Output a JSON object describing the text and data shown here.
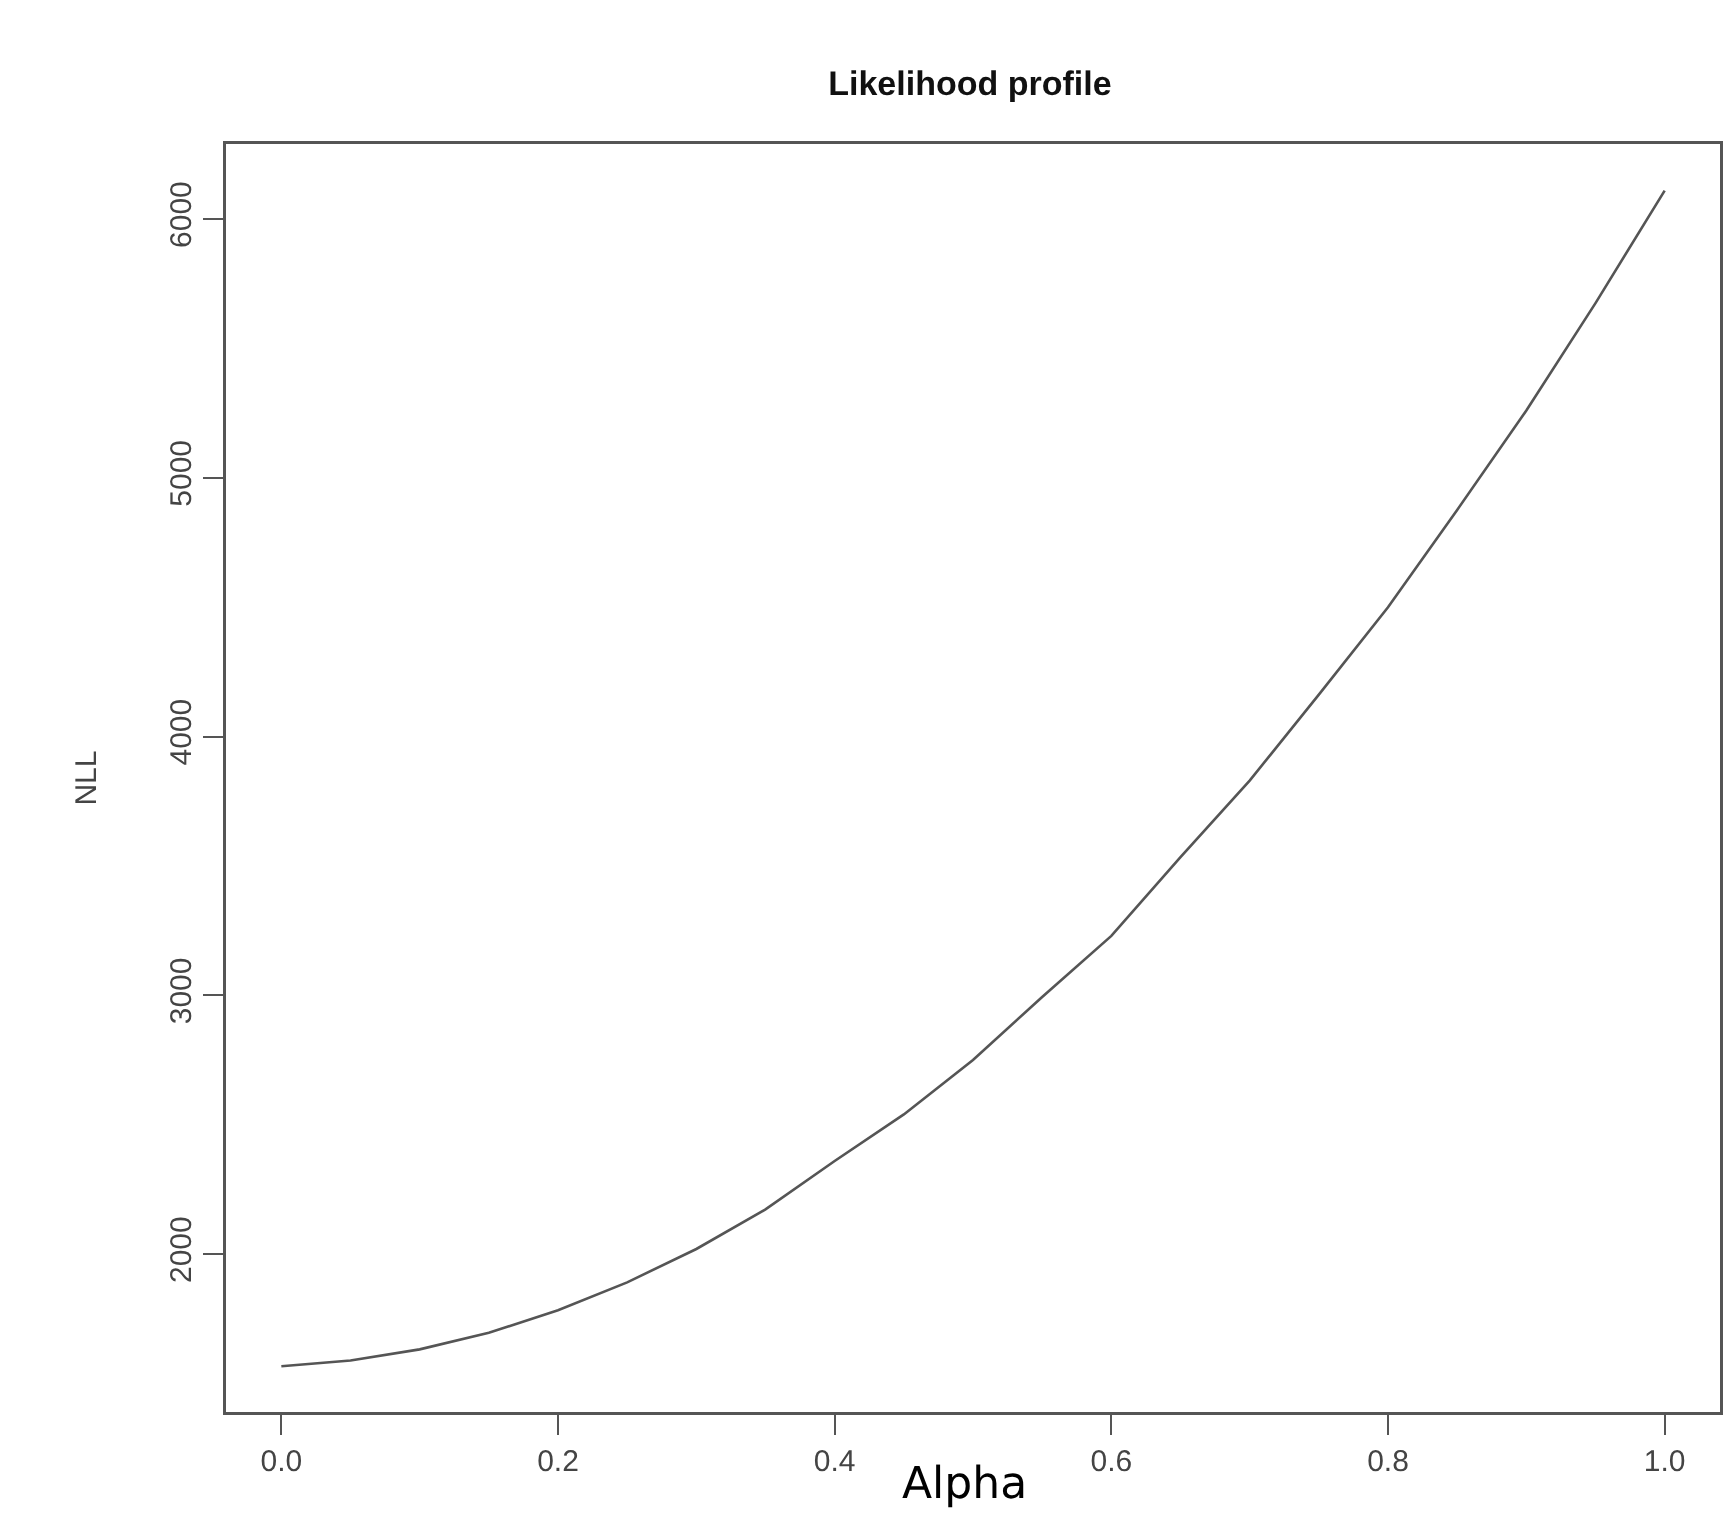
{
  "chart_data": {
    "type": "line",
    "title": "Likelihood profile",
    "xlabel": "Alpha",
    "ylabel": "NLL",
    "x": [
      0,
      0.05,
      0.1,
      0.15,
      0.2,
      0.25,
      0.3,
      0.35,
      0.4,
      0.45,
      0.5,
      0.55,
      0.6,
      0.65,
      0.7,
      0.75,
      0.8,
      0.85,
      0.9,
      0.95,
      1.0
    ],
    "series": [
      {
        "color": "#555555",
        "values": [
          1567,
          1589,
          1632,
          1696,
          1783,
          1891,
          2020,
          2173,
          2360,
          2540,
          2750,
          2994,
          3230,
          3534,
          3830,
          4162,
          4500,
          4876,
          5260,
          5675,
          6110
        ]
      }
    ],
    "xlim": [
      -0.04,
      1.04
    ],
    "xticks": [
      {
        "value": 0,
        "label": "0.0"
      },
      0.2,
      0.4,
      0.6,
      0.8,
      {
        "value": 1,
        "label": "1.0"
      }
    ],
    "ylim": [
      1390,
      6290
    ],
    "yticks": [
      2000,
      3000,
      4000,
      5000,
      6000
    ],
    "grid": false,
    "legend": false,
    "marker": "none",
    "line_style": "solid"
  }
}
